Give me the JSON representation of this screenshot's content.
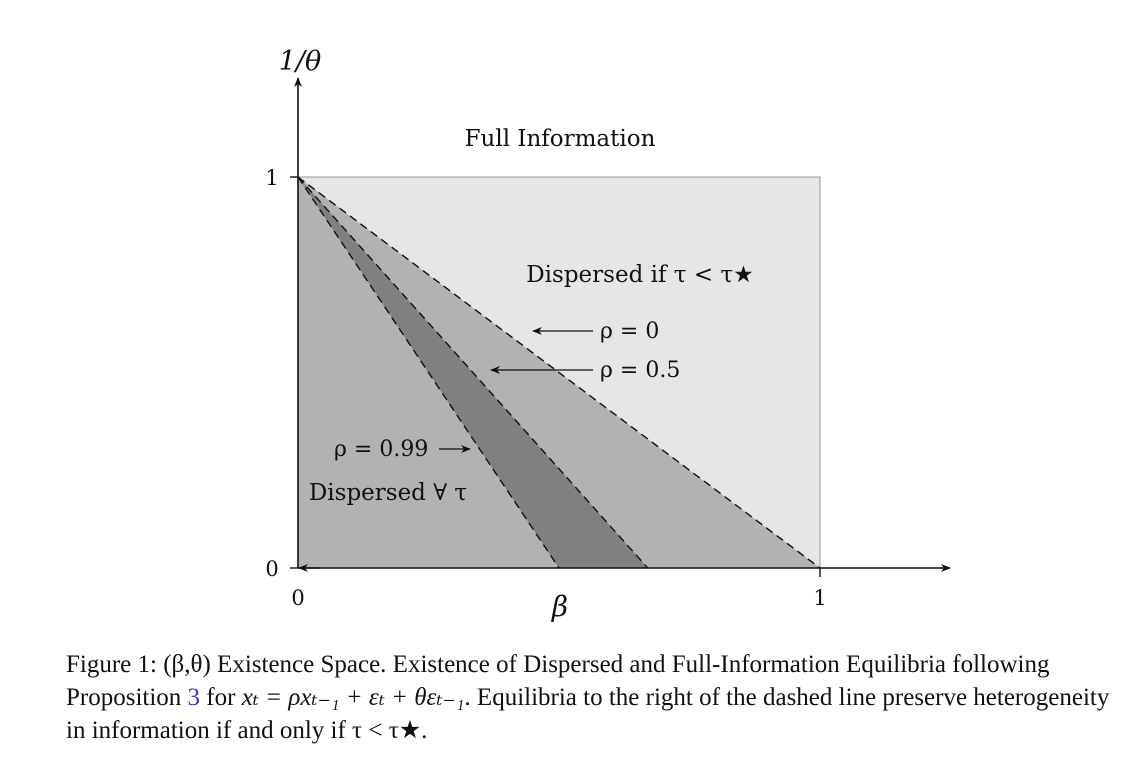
{
  "axes": {
    "y_label": "1/θ",
    "x_label": "β",
    "x_ticks": [
      {
        "value": 0,
        "label": "0"
      },
      {
        "value": 1,
        "label": "1"
      }
    ],
    "y_ticks": [
      {
        "value": 0,
        "label": "0"
      },
      {
        "value": 1,
        "label": "1"
      }
    ],
    "xlim": [
      0,
      1
    ],
    "ylim": [
      0,
      1
    ]
  },
  "regions": {
    "full_info_label": "Full Information",
    "dispersed_if_label": "Dispersed if τ < τ★",
    "dispersed_all_label": "Dispersed ∀ τ",
    "colors": {
      "full_region": "#e6e6e6",
      "rho0_band": "#b2b2b2",
      "rho099_band": "#808080"
    }
  },
  "boundaries": [
    {
      "name": "rho0",
      "label": "ρ = 0",
      "x_intercept": 1.0
    },
    {
      "name": "rho05",
      "label": "ρ = 0.5",
      "x_intercept": 0.67
    },
    {
      "name": "rho099",
      "label": "ρ = 0.99",
      "x_intercept": 0.5
    }
  ],
  "caption": {
    "prefix": "Figure 1: (β,θ) Existence Space. Existence of Dispersed and Full-Information Equilibria following Proposition ",
    "ref": "3",
    "mid": " for ",
    "formula": "xₜ = ρxₜ₋₁ + εₜ + θεₜ₋₁",
    "suffix": ". Equilibria to the right of the dashed line preserve heterogeneity in information if and only if τ < τ★."
  }
}
